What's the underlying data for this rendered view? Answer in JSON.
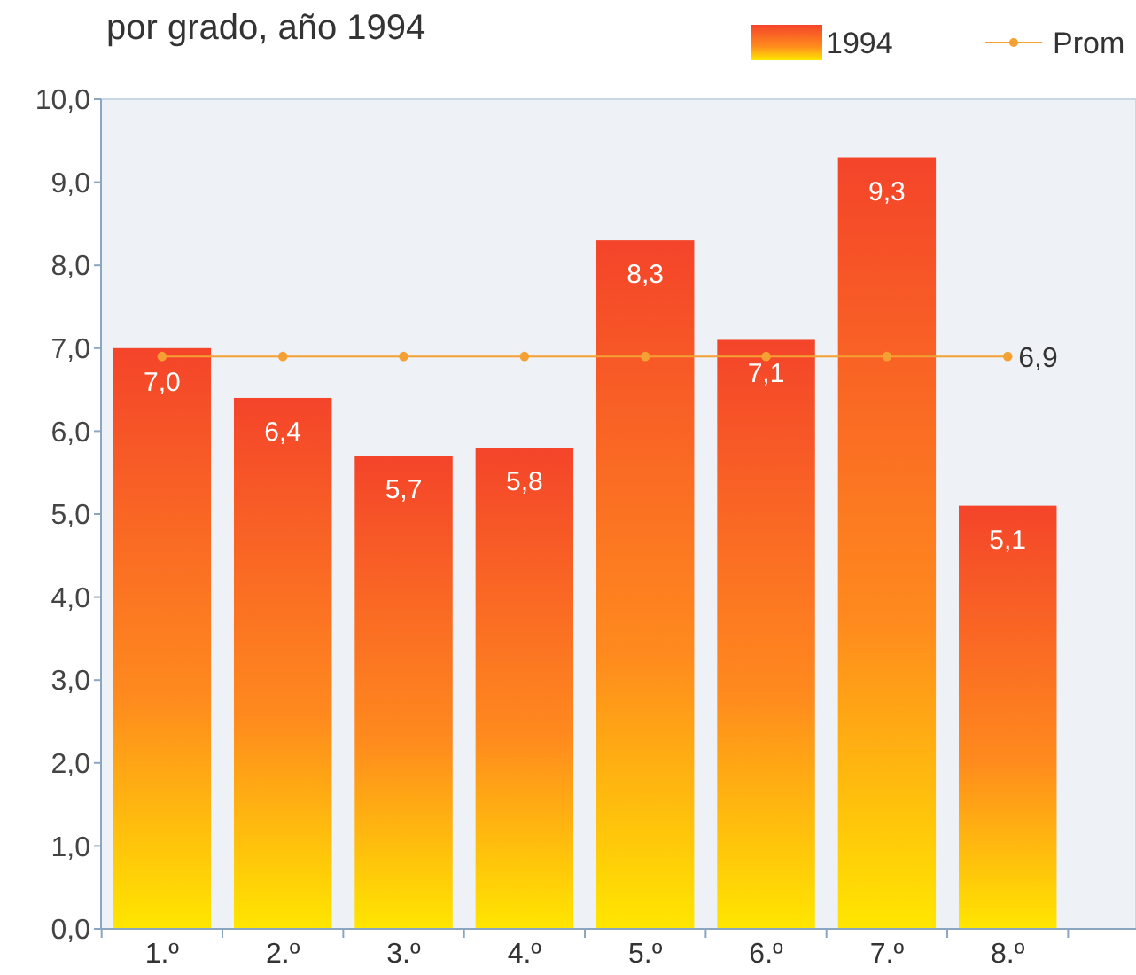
{
  "chart_data": {
    "type": "bar",
    "subtitle": "por grado, año 1994",
    "categories": [
      "1.º",
      "2.º",
      "3.º",
      "4.º",
      "5.º",
      "6.º",
      "7.º",
      "8.º"
    ],
    "series": [
      {
        "name": "1994",
        "color": "#f4442a",
        "values": [
          7.0,
          6.4,
          5.7,
          5.8,
          8.3,
          7.1,
          9.3,
          5.1
        ],
        "value_labels": [
          "7,0",
          "6,4",
          "5,7",
          "5,8",
          "8,3",
          "7,1",
          "9,3",
          "5,1"
        ]
      },
      {
        "name": "Prom",
        "type": "line",
        "color": "#f5a033",
        "values": [
          6.9,
          6.9,
          6.9,
          6.9,
          6.9,
          6.9,
          6.9,
          6.9
        ],
        "value_labels": [
          null,
          null,
          null,
          null,
          null,
          null,
          null,
          "6,9"
        ]
      }
    ],
    "ylim": [
      0,
      10
    ],
    "yticks": [
      {
        "value": 0,
        "label": "0,0"
      },
      {
        "value": 1,
        "label": "1,0"
      },
      {
        "value": 2,
        "label": "2,0"
      },
      {
        "value": 3,
        "label": "3,0"
      },
      {
        "value": 4,
        "label": "4,0"
      },
      {
        "value": 5,
        "label": "5,0"
      },
      {
        "value": 6,
        "label": "6,0"
      },
      {
        "value": 7,
        "label": "7,0"
      },
      {
        "value": 8,
        "label": "8,0"
      },
      {
        "value": 9,
        "label": "9,0"
      },
      {
        "value": 10,
        "label": "10,0"
      }
    ],
    "legend": "top right",
    "marker": "circle"
  }
}
